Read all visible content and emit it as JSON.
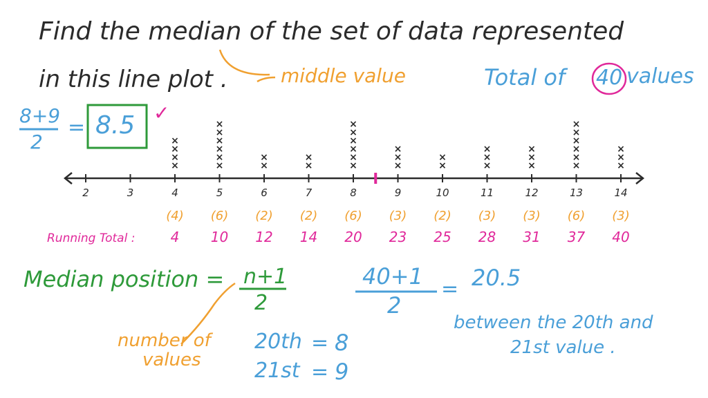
{
  "colors": {
    "ink": "#2b2b2b",
    "blue": "#4a9fd8",
    "green": "#2e9a3a",
    "orange": "#f0a030",
    "pink": "#e0289a"
  },
  "question": {
    "line1": "Find the median of the set of data represented",
    "line2": "in this line plot .",
    "annotation_middle": "middle value",
    "total_prefix": "Total of",
    "total_value": "40",
    "total_suffix": "values"
  },
  "answer": {
    "fraction_top": "8+9",
    "fraction_bottom": "2",
    "equals": "=",
    "value": "8.5",
    "check": "✓"
  },
  "chart_data": {
    "type": "dot-plot",
    "x": [
      2,
      3,
      4,
      5,
      6,
      7,
      8,
      9,
      10,
      11,
      12,
      13,
      14
    ],
    "tick_labels": [
      "2",
      "3",
      "4",
      "5",
      "6",
      "7",
      "8",
      "9",
      "10",
      "11",
      "12",
      "13",
      "14"
    ],
    "counts": [
      0,
      0,
      4,
      6,
      2,
      2,
      6,
      3,
      2,
      3,
      3,
      6,
      3
    ],
    "frequency_labels": [
      "(4)",
      "(6)",
      "(2)",
      "(2)",
      "(6)",
      "(3)",
      "(2)",
      "(3)",
      "(3)",
      "(6)",
      "(3)"
    ],
    "running_total_label": "Running Total :",
    "running_totals": [
      "4",
      "10",
      "12",
      "14",
      "20",
      "23",
      "25",
      "28",
      "31",
      "37",
      "40"
    ],
    "median_marker": 8.5,
    "mark": "×"
  },
  "median_position": {
    "label": "Median position =",
    "numerator": "n+1",
    "denominator": "2",
    "note_line1": "number of",
    "note_line2": "values",
    "calc_numerator": "40+1",
    "calc_denominator": "2",
    "calc_equals": "=",
    "calc_result": "20.5",
    "between_line1": "between the 20th and",
    "between_line2": "21st value .",
    "row1_left": "20th",
    "row1_eq": "=",
    "row1_right": "8",
    "row2_left": "21st",
    "row2_eq": "=",
    "row2_right": "9"
  }
}
